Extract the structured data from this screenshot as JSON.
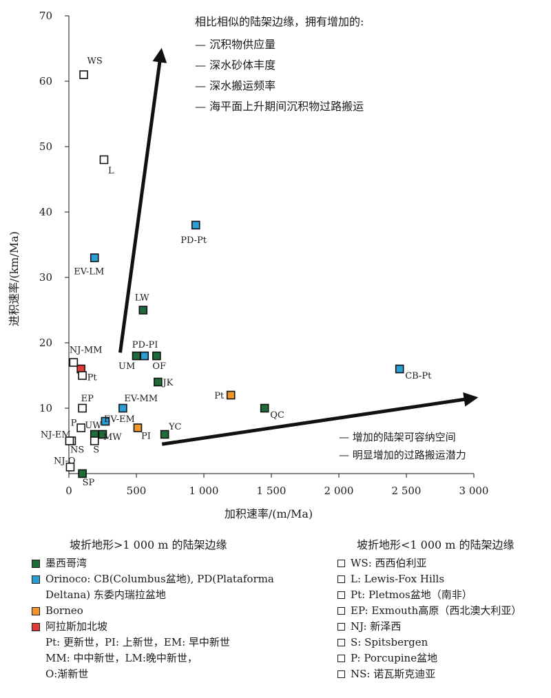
{
  "chart_data": {
    "type": "scatter",
    "xlabel": "加积速率/(m/Ma)",
    "ylabel": "进积速率/(km/Ma)",
    "xlim": [
      0,
      3000
    ],
    "ylim": [
      0,
      70
    ],
    "x_ticks": [
      {
        "value": 0,
        "label": "0"
      },
      {
        "value": 500,
        "label": "500"
      },
      {
        "value": 1000,
        "label": "1 000"
      },
      {
        "value": 1500,
        "label": "1 500"
      },
      {
        "value": 2000,
        "label": "2 000"
      },
      {
        "value": 2500,
        "label": "2 500"
      },
      {
        "value": 3000,
        "label": "3 000"
      }
    ],
    "y_ticks": [
      {
        "value": 10,
        "label": "10"
      },
      {
        "value": 20,
        "label": "20"
      },
      {
        "value": 30,
        "label": "30"
      },
      {
        "value": 40,
        "label": "40"
      },
      {
        "value": 50,
        "label": "50"
      },
      {
        "value": 60,
        "label": "60"
      },
      {
        "value": 70,
        "label": "70"
      }
    ],
    "grid": false,
    "colors": {
      "gulf_of_mexico": "#1f6b3a",
      "orinoco": "#2a9fd6",
      "borneo": "#f0962a",
      "alaska": "#e23a36",
      "hollow": "#ffffff"
    },
    "points": [
      {
        "label": "WS",
        "x": 110,
        "y": 61,
        "group": "hollow"
      },
      {
        "label": "L",
        "x": 260,
        "y": 48,
        "group": "hollow"
      },
      {
        "label": "PD-Pt",
        "x": 940,
        "y": 38,
        "group": "orinoco"
      },
      {
        "label": "EV-LM",
        "x": 190,
        "y": 33,
        "group": "orinoco"
      },
      {
        "label": "LW",
        "x": 550,
        "y": 25,
        "group": "gulf_of_mexico"
      },
      {
        "label": "NJ-MM",
        "x": 35,
        "y": 17,
        "group": "hollow"
      },
      {
        "label": "",
        "x": 90,
        "y": 16,
        "group": "alaska"
      },
      {
        "label": "Pt",
        "x": 100,
        "y": 15,
        "group": "hollow"
      },
      {
        "label": "UM",
        "x": 500,
        "y": 18,
        "group": "gulf_of_mexico"
      },
      {
        "label": "PD-PI",
        "x": 560,
        "y": 18,
        "group": "orinoco"
      },
      {
        "label": "OF",
        "x": 650,
        "y": 18,
        "group": "gulf_of_mexico"
      },
      {
        "label": "JK",
        "x": 660,
        "y": 14,
        "group": "gulf_of_mexico"
      },
      {
        "label": "CB-Pt",
        "x": 2450,
        "y": 16,
        "group": "orinoco"
      },
      {
        "label": "Pt",
        "x": 1200,
        "y": 12,
        "group": "borneo"
      },
      {
        "label": "QC",
        "x": 1450,
        "y": 10,
        "group": "gulf_of_mexico"
      },
      {
        "label": "EP",
        "x": 100,
        "y": 10,
        "group": "hollow"
      },
      {
        "label": "EV-MM",
        "x": 400,
        "y": 10,
        "group": "orinoco"
      },
      {
        "label": "EV-EM",
        "x": 270,
        "y": 8,
        "group": "orinoco"
      },
      {
        "label": "PI",
        "x": 510,
        "y": 7,
        "group": "borneo"
      },
      {
        "label": "P",
        "x": 90,
        "y": 7,
        "group": "hollow"
      },
      {
        "label": "UW",
        "x": 190,
        "y": 6,
        "group": "gulf_of_mexico"
      },
      {
        "label": "MW",
        "x": 250,
        "y": 6,
        "group": "gulf_of_mexico"
      },
      {
        "label": "YC",
        "x": 710,
        "y": 6,
        "group": "gulf_of_mexico"
      },
      {
        "label": "NJ-EM",
        "x": 20,
        "y": 5,
        "group": "hollow"
      },
      {
        "label": "NS",
        "x": 5,
        "y": 5,
        "group": "hollow"
      },
      {
        "label": "S",
        "x": 190,
        "y": 5,
        "group": "hollow"
      },
      {
        "label": "NJ-O",
        "x": 10,
        "y": 1,
        "group": "hollow"
      },
      {
        "label": "SP",
        "x": 100,
        "y": 0,
        "group": "gulf_of_mexico"
      }
    ],
    "arrows": [
      {
        "from": [
          380,
          18.5
        ],
        "to": [
          680,
          64
        ]
      },
      {
        "from": [
          690,
          4.5
        ],
        "to": [
          2980,
          11.5
        ]
      }
    ],
    "annotations": {
      "upper_title": "相比相似的陆架边缘，拥有增加的:",
      "upper_items": [
        "—  沉积物供应量",
        "—  深水砂体丰度",
        "—  深水搬运频率",
        "—  海平面上升期间沉积物过路搬运"
      ],
      "lower_items": [
        "—  增加的陆架可容纳空间",
        "—  明显增加的过路搬运潜力"
      ]
    }
  },
  "legend": {
    "left_title": "坡折地形>1 000 m 的陆架边缘",
    "left_items": [
      {
        "text": "墨西哥湾",
        "color": "#1f6b3a"
      },
      {
        "text": "Orinoco: CB(Columbus盆地), PD(Plataforma Deltana) 东委内瑞拉盆地",
        "color": "#2a9fd6"
      },
      {
        "text": "Borneo",
        "color": "#f0962a"
      },
      {
        "text": "阿拉斯加北坡",
        "color": "#e23a36"
      }
    ],
    "left_notes": [
      "Pt: 更新世，PI: 上新世，EM: 早中新世",
      "MM: 中中新世，LM:晚中新世，",
      "O:渐新世"
    ],
    "right_title": "坡折地形<1 000 m 的陆架边缘",
    "right_items": [
      "WS: 西西伯利亚",
      "L: Lewis-Fox Hills",
      "Pt: Pletmos盆地（南非）",
      "EP: Exmouth高原（西北澳大利亚）",
      "NJ: 新泽西",
      "S: Spitsbergen",
      "P: Porcupine盆地",
      "NS: 诺瓦斯克迪亚"
    ]
  }
}
